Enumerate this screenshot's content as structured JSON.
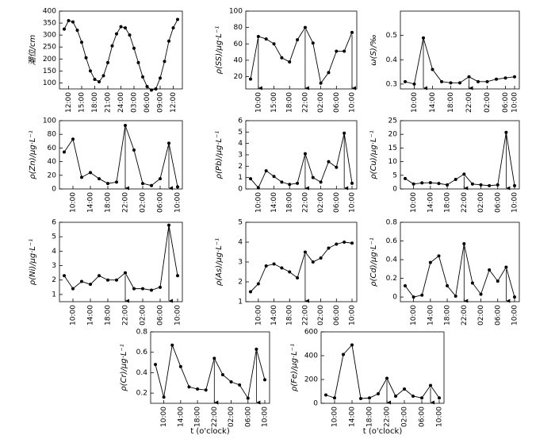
{
  "chart_data": [
    {
      "type": "line",
      "ylabel": "潮位/cm",
      "ylim": [
        75,
        400
      ],
      "yticks": [
        100,
        150,
        200,
        250,
        300,
        350,
        400
      ],
      "categories": [
        null,
        "12:00",
        null,
        null,
        "15:00",
        null,
        null,
        "18:00",
        null,
        null,
        "21:00",
        null,
        null,
        "24:00",
        null,
        null,
        "03:00",
        null,
        null,
        "06:00",
        null,
        null,
        "09:00",
        null,
        null,
        "12:00",
        null
      ],
      "values": [
        325,
        360,
        355,
        320,
        270,
        205,
        150,
        115,
        105,
        130,
        185,
        255,
        305,
        335,
        330,
        300,
        245,
        185,
        125,
        85,
        70,
        75,
        120,
        190,
        275,
        330,
        365
      ],
      "arrows": []
    },
    {
      "type": "line",
      "ylabel": "ρ(SS)/μg·L⁻¹",
      "ylim": [
        5,
        100
      ],
      "yticks": [
        20,
        40,
        60,
        80,
        100
      ],
      "categories": [
        null,
        "10:00",
        null,
        "15:00",
        null,
        "18:00",
        null,
        "22:00",
        null,
        "02:00",
        null,
        "06:00",
        null,
        "10:00"
      ],
      "values": [
        17,
        69,
        66,
        60,
        43,
        38,
        65,
        80,
        61,
        12,
        25,
        51,
        51,
        74
      ],
      "arrows": [
        1,
        7,
        13
      ]
    },
    {
      "type": "line",
      "ylabel": "ω(S)/‰",
      "ylim": [
        0.28,
        0.6
      ],
      "yticks": [
        0.3,
        0.4,
        0.5
      ],
      "categories": [
        null,
        "10:00",
        null,
        "14:00",
        null,
        "18:00",
        null,
        "22:00",
        null,
        "02:00",
        null,
        "06:00",
        "10:00"
      ],
      "values": [
        0.31,
        0.3,
        0.49,
        0.36,
        0.31,
        0.305,
        0.305,
        0.33,
        0.31,
        0.31,
        0.32,
        0.325,
        0.33
      ],
      "arrows": [
        2,
        7
      ]
    },
    {
      "type": "line",
      "ylabel": "ρ(Zn)/μg·L⁻¹",
      "ylim": [
        0,
        100
      ],
      "yticks": [
        0,
        20,
        40,
        60,
        80,
        100
      ],
      "categories": [
        null,
        "10:00",
        null,
        "14:00",
        null,
        "18:00",
        null,
        "22:00",
        null,
        "02:00",
        null,
        "06:00",
        null,
        "10:00"
      ],
      "values": [
        54,
        73,
        17,
        24,
        15,
        8,
        10,
        93,
        57,
        8,
        5,
        15,
        67,
        3
      ],
      "arrows": [
        7,
        12
      ]
    },
    {
      "type": "line",
      "ylabel": "ρ(Pb)/μg·L⁻¹",
      "ylim": [
        0,
        6
      ],
      "yticks": [
        0,
        1,
        2,
        3,
        4,
        5,
        6
      ],
      "categories": [
        null,
        "10:00",
        null,
        "14:00",
        null,
        "18:00",
        null,
        "22:00",
        null,
        "02:00",
        null,
        "06:00",
        null,
        "10:00"
      ],
      "values": [
        0.9,
        0.1,
        1.6,
        1.1,
        0.6,
        0.4,
        0.5,
        3.1,
        1.0,
        0.6,
        2.4,
        1.9,
        4.9,
        0.5
      ],
      "arrows": [
        7,
        12
      ]
    },
    {
      "type": "line",
      "ylabel": "ρ(Cu)/μg·L⁻¹",
      "ylim": [
        0,
        25
      ],
      "yticks": [
        0,
        5,
        10,
        15,
        20,
        25
      ],
      "categories": [
        null,
        "10:00",
        null,
        "14:00",
        null,
        "18:00",
        null,
        "22:00",
        null,
        "02:00",
        null,
        "06:00",
        null,
        "10:00"
      ],
      "values": [
        3.8,
        1.8,
        2.2,
        2.3,
        2.0,
        1.5,
        3.5,
        5.4,
        1.8,
        1.5,
        1.2,
        1.5,
        20.7,
        1.2
      ],
      "arrows": [
        7,
        12
      ]
    },
    {
      "type": "line",
      "ylabel": "ρ(Ni)/μg·L⁻¹",
      "ylim": [
        0.5,
        6
      ],
      "yticks": [
        1,
        2,
        3,
        4,
        5,
        6
      ],
      "categories": [
        null,
        "10:00",
        null,
        "14:00",
        null,
        "18:00",
        null,
        "22:00",
        null,
        "02:00",
        null,
        "06:00",
        null,
        "10:00"
      ],
      "values": [
        2.3,
        1.4,
        1.9,
        1.7,
        2.3,
        2.0,
        2.0,
        2.5,
        1.4,
        1.4,
        1.3,
        1.5,
        5.8,
        2.3
      ],
      "arrows": [
        7,
        12
      ]
    },
    {
      "type": "line",
      "ylabel": "ρ(As)/μg·L⁻¹",
      "ylim": [
        1,
        5
      ],
      "yticks": [
        1,
        2,
        3,
        4,
        5
      ],
      "categories": [
        null,
        "10:00",
        null,
        "14:00",
        null,
        "18:00",
        null,
        "22:00",
        null,
        "02:00",
        null,
        "06:00",
        null,
        "10:00"
      ],
      "values": [
        1.5,
        1.9,
        2.8,
        2.9,
        2.7,
        2.5,
        2.2,
        3.5,
        3.0,
        3.2,
        3.7,
        3.9,
        4.0,
        3.95
      ],
      "arrows": [
        7
      ]
    },
    {
      "type": "line",
      "ylabel": "ρ(Cd)/μg·L⁻¹",
      "ylim": [
        -0.05,
        0.8
      ],
      "yticks": [
        0,
        0.2,
        0.4,
        0.6,
        0.8
      ],
      "categories": [
        null,
        "10:00",
        null,
        "14:00",
        null,
        "18:00",
        null,
        "22:00",
        null,
        "02:00",
        null,
        "06:00",
        null,
        "10:00"
      ],
      "values": [
        0.12,
        0.0,
        0.02,
        0.37,
        0.44,
        0.12,
        0.01,
        0.57,
        0.15,
        0.03,
        0.29,
        0.17,
        0.32,
        0.0
      ],
      "arrows": [
        7,
        12
      ]
    },
    {
      "type": "line",
      "ylabel": "ρ(Cr)/μg·L⁻¹",
      "xlabel": "t (o'clock)",
      "ylim": [
        0.1,
        0.8
      ],
      "yticks": [
        0.2,
        0.4,
        0.6,
        0.8
      ],
      "categories": [
        null,
        "10:00",
        null,
        "14:00",
        null,
        "18:00",
        null,
        "22:00",
        null,
        "02:00",
        null,
        "06:00",
        null,
        "10:00"
      ],
      "values": [
        0.48,
        0.16,
        0.67,
        0.46,
        0.26,
        0.24,
        0.23,
        0.54,
        0.38,
        0.31,
        0.28,
        0.15,
        0.63,
        0.33
      ],
      "arrows": [
        7,
        12
      ]
    },
    {
      "type": "line",
      "ylabel": "ρ(Fe)/μg·L⁻¹",
      "xlabel": "t (o'clock)",
      "ylim": [
        0,
        600
      ],
      "yticks": [
        0,
        200,
        400,
        600
      ],
      "categories": [
        null,
        "10:00",
        null,
        "14:00",
        null,
        "18:00",
        null,
        "22:00",
        null,
        "02:00",
        null,
        "06:00",
        null,
        "10:00"
      ],
      "values": [
        70,
        45,
        410,
        490,
        40,
        45,
        80,
        210,
        60,
        120,
        60,
        45,
        150,
        45
      ],
      "arrows": [
        7,
        12
      ]
    }
  ]
}
